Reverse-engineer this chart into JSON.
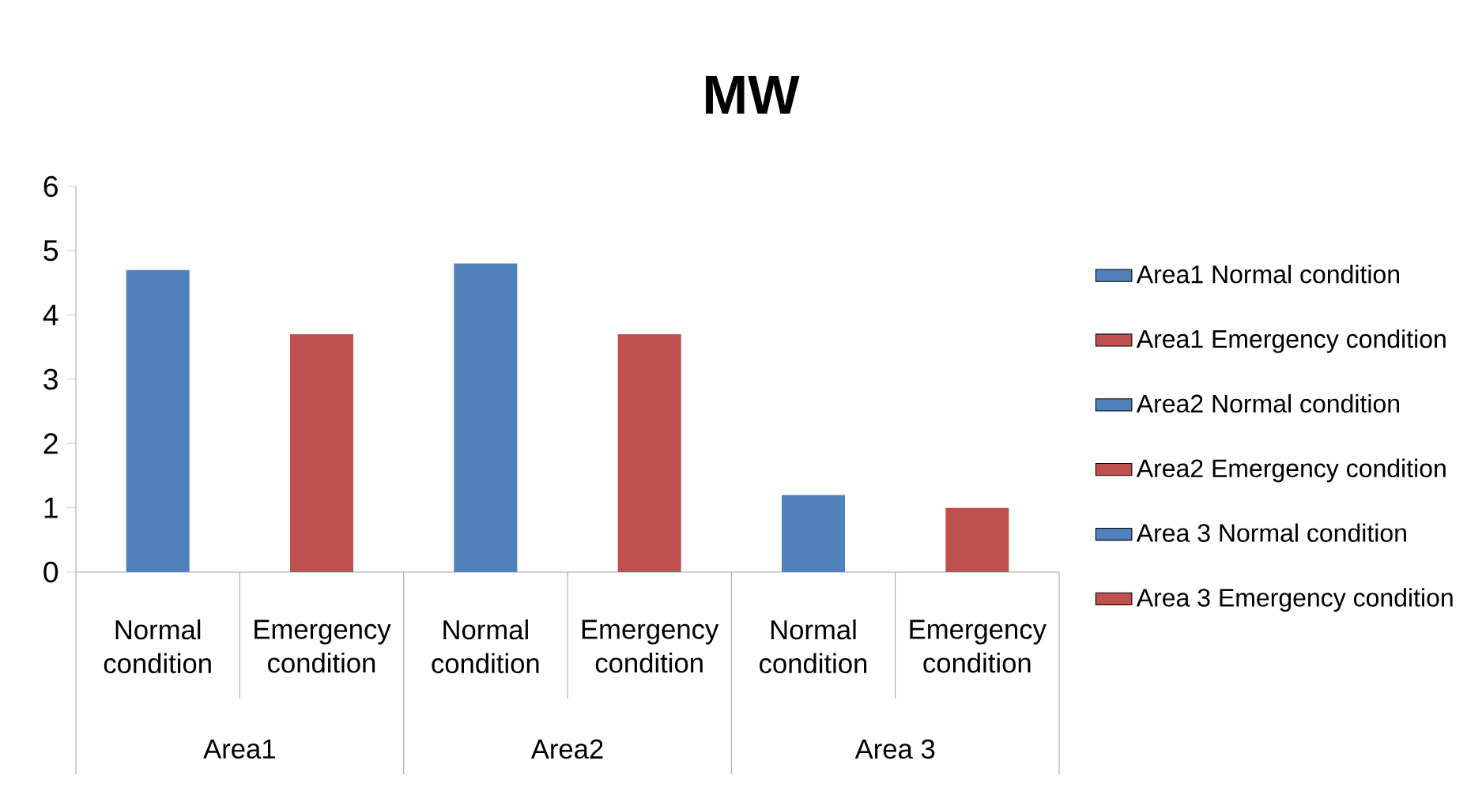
{
  "chart_data": {
    "type": "bar",
    "title": "MW",
    "categories": [
      "Normal condition",
      "Emergency condition",
      "Normal condition",
      "Emergency condition",
      "Normal condition",
      "Emergency condition"
    ],
    "series": [
      {
        "name": "Area1 Normal condition",
        "color": "#4f81bd",
        "values": [
          4.7,
          null,
          null,
          null,
          null,
          null
        ]
      },
      {
        "name": "Area1 Emergency condition",
        "color": "#c0504d",
        "values": [
          null,
          3.7,
          null,
          null,
          null,
          null
        ]
      },
      {
        "name": "Area2 Normal condition",
        "color": "#4f81bd",
        "values": [
          null,
          null,
          4.8,
          null,
          null,
          null
        ]
      },
      {
        "name": "Area2 Emergency condition",
        "color": "#c0504d",
        "values": [
          null,
          null,
          null,
          3.7,
          null,
          null
        ]
      },
      {
        "name": "Area 3 Normal condition",
        "color": "#4f81bd",
        "values": [
          null,
          null,
          null,
          null,
          1.2,
          null
        ]
      },
      {
        "name": "Area 3 Emergency condition",
        "color": "#c0504d",
        "values": [
          null,
          null,
          null,
          null,
          null,
          1.0
        ]
      }
    ],
    "annotations": [
      "Area1",
      "Area2",
      "Area 3"
    ],
    "ylim": [
      0,
      6
    ],
    "yticks": [
      0,
      1,
      2,
      3,
      4,
      5,
      6
    ],
    "grid": false,
    "legend": "right"
  }
}
